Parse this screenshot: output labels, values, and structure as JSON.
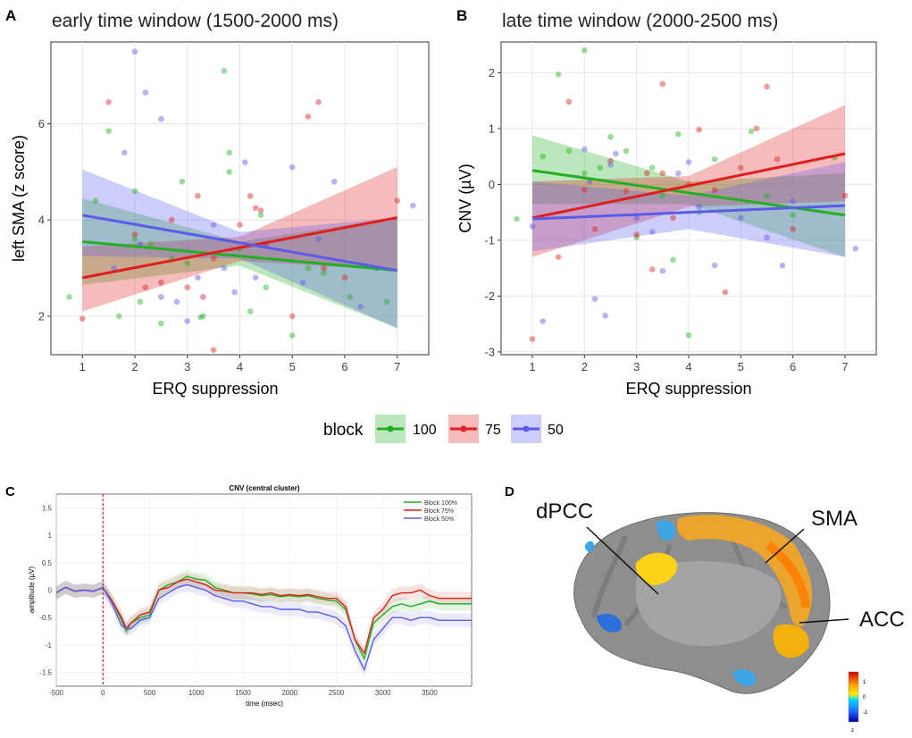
{
  "colors": {
    "s100": "#22b022",
    "s75": "#e01e1e",
    "s50": "#5b5bea",
    "panel_bg": "#ffffff",
    "grid": "#e6e6e6",
    "brain_gray": "#8c8c8c"
  },
  "panel_a": {
    "letter": "A",
    "title": "early time window (1500-2000 ms)",
    "chart_data": {
      "type": "scatter",
      "title": "early time window (1500-2000 ms)",
      "xlabel": "ERQ suppression",
      "ylabel": "left SMA (z score)",
      "xlim": [
        0.4,
        7.6
      ],
      "ylim": [
        1.2,
        7.7
      ],
      "xticks": [
        1,
        2,
        3,
        4,
        5,
        6,
        7
      ],
      "yticks": [
        2,
        4,
        6
      ],
      "series": [
        {
          "name": "100",
          "fit_x": [
            1,
            7
          ],
          "fit_y": [
            3.55,
            2.95
          ],
          "ci_low_x": [
            1,
            4,
            7
          ],
          "ci_low": [
            2.65,
            3.05,
            1.75
          ],
          "ci_high": [
            4.45,
            3.55,
            4.05
          ],
          "points": [
            [
              0.75,
              2.4
            ],
            [
              1.25,
              4.4
            ],
            [
              1.5,
              5.85
            ],
            [
              1.7,
              2.0
            ],
            [
              2.0,
              4.6
            ],
            [
              2.0,
              3.6
            ],
            [
              2.1,
              2.3
            ],
            [
              2.3,
              3.5
            ],
            [
              2.5,
              1.85
            ],
            [
              2.7,
              3.2
            ],
            [
              2.9,
              4.8
            ],
            [
              3.0,
              3.1
            ],
            [
              3.25,
              1.98
            ],
            [
              3.3,
              2.0
            ],
            [
              3.7,
              7.1
            ],
            [
              3.8,
              5.4
            ],
            [
              3.8,
              5.0
            ],
            [
              4.0,
              3.4
            ],
            [
              4.2,
              2.1
            ],
            [
              4.4,
              4.1
            ],
            [
              4.5,
              2.6
            ],
            [
              5.0,
              1.6
            ],
            [
              5.3,
              3.0
            ],
            [
              5.6,
              2.9
            ],
            [
              6.1,
              2.4
            ],
            [
              6.8,
              2.3
            ]
          ]
        },
        {
          "name": "75",
          "fit_x": [
            1,
            7
          ],
          "fit_y": [
            2.8,
            4.05
          ],
          "ci_low_x": [
            1,
            4,
            7
          ],
          "ci_low": [
            2.1,
            3.15,
            2.95
          ],
          "ci_high": [
            3.45,
            3.65,
            5.1
          ],
          "points": [
            [
              1.0,
              1.95
            ],
            [
              1.5,
              6.45
            ],
            [
              2.0,
              3.7
            ],
            [
              2.2,
              2.6
            ],
            [
              2.5,
              2.7
            ],
            [
              2.7,
              4.0
            ],
            [
              3.0,
              2.6
            ],
            [
              3.2,
              4.5
            ],
            [
              3.3,
              2.4
            ],
            [
              3.5,
              1.3
            ],
            [
              3.5,
              3.2
            ],
            [
              4.0,
              3.9
            ],
            [
              4.2,
              4.5
            ],
            [
              4.3,
              4.25
            ],
            [
              4.4,
              4.2
            ],
            [
              4.5,
              3.5
            ],
            [
              5.0,
              2.0
            ],
            [
              5.3,
              6.15
            ],
            [
              5.5,
              6.45
            ],
            [
              5.6,
              3.0
            ],
            [
              6.0,
              2.8
            ],
            [
              7.0,
              4.4
            ]
          ]
        },
        {
          "name": "50",
          "fit_x": [
            1,
            7
          ],
          "fit_y": [
            4.1,
            2.95
          ],
          "ci_low_x": [
            1,
            4,
            7
          ],
          "ci_low": [
            3.25,
            3.2,
            1.75
          ],
          "ci_high": [
            5.05,
            3.75,
            4.05
          ],
          "points": [
            [
              1.6,
              3.0
            ],
            [
              1.8,
              5.4
            ],
            [
              2.0,
              7.5
            ],
            [
              2.1,
              3.5
            ],
            [
              2.2,
              6.65
            ],
            [
              2.5,
              6.1
            ],
            [
              2.5,
              2.4
            ],
            [
              2.8,
              2.3
            ],
            [
              3.0,
              1.9
            ],
            [
              3.2,
              2.8
            ],
            [
              3.5,
              3.9
            ],
            [
              3.7,
              3.0
            ],
            [
              3.9,
              2.5
            ],
            [
              4.1,
              5.2
            ],
            [
              4.3,
              2.8
            ],
            [
              4.5,
              3.5
            ],
            [
              5.0,
              5.1
            ],
            [
              5.2,
              2.7
            ],
            [
              5.5,
              3.6
            ],
            [
              5.8,
              4.8
            ],
            [
              6.3,
              2.2
            ],
            [
              6.6,
              3.0
            ],
            [
              7.3,
              4.3
            ]
          ]
        }
      ]
    }
  },
  "panel_b": {
    "letter": "B",
    "title": "late time window (2000-2500 ms)",
    "chart_data": {
      "type": "scatter",
      "title": "late time window (2000-2500 ms)",
      "xlabel": "ERQ suppression",
      "ylabel": "CNV (µV)",
      "xlim": [
        0.4,
        7.6
      ],
      "ylim": [
        -3.05,
        2.55
      ],
      "xticks": [
        1,
        2,
        3,
        4,
        5,
        6,
        7
      ],
      "yticks": [
        -3,
        -2,
        -1,
        0,
        1,
        2
      ],
      "series": [
        {
          "name": "100",
          "fit_x": [
            1,
            7
          ],
          "fit_y": [
            0.25,
            -0.55
          ],
          "ci_low_x": [
            1,
            4,
            7
          ],
          "ci_low": [
            -0.35,
            -0.35,
            -1.3
          ],
          "ci_high": [
            0.88,
            0.05,
            0.2
          ],
          "points": [
            [
              0.7,
              -0.62
            ],
            [
              1.2,
              0.5
            ],
            [
              1.5,
              1.97
            ],
            [
              1.7,
              0.6
            ],
            [
              2.0,
              2.4
            ],
            [
              2.0,
              0.2
            ],
            [
              2.3,
              0.3
            ],
            [
              2.5,
              0.85
            ],
            [
              2.8,
              0.6
            ],
            [
              3.0,
              -0.95
            ],
            [
              3.3,
              0.3
            ],
            [
              3.5,
              -0.2
            ],
            [
              3.7,
              -1.35
            ],
            [
              3.8,
              0.9
            ],
            [
              4.0,
              -2.7
            ],
            [
              4.2,
              -0.5
            ],
            [
              4.5,
              0.45
            ],
            [
              5.2,
              0.95
            ],
            [
              5.5,
              -0.2
            ],
            [
              6.0,
              -0.55
            ],
            [
              6.8,
              0.48
            ]
          ]
        },
        {
          "name": "75",
          "fit_x": [
            1,
            7
          ],
          "fit_y": [
            -0.6,
            0.55
          ],
          "ci_low_x": [
            1,
            4,
            7
          ],
          "ci_low": [
            -1.3,
            -0.4,
            -0.3
          ],
          "ci_high": [
            0.05,
            0.15,
            1.42
          ],
          "points": [
            [
              1.0,
              -2.77
            ],
            [
              1.5,
              -1.3
            ],
            [
              1.7,
              1.48
            ],
            [
              2.0,
              -0.1
            ],
            [
              2.2,
              -0.8
            ],
            [
              2.5,
              0.42
            ],
            [
              2.8,
              -0.12
            ],
            [
              3.0,
              -0.9
            ],
            [
              3.2,
              0.2
            ],
            [
              3.3,
              -1.52
            ],
            [
              3.5,
              1.8
            ],
            [
              3.5,
              0.2
            ],
            [
              3.7,
              -0.6
            ],
            [
              4.0,
              0.0
            ],
            [
              4.2,
              0.98
            ],
            [
              4.5,
              -0.1
            ],
            [
              4.7,
              -1.93
            ],
            [
              5.0,
              0.3
            ],
            [
              5.3,
              1.0
            ],
            [
              5.5,
              1.75
            ],
            [
              5.7,
              0.45
            ],
            [
              6.0,
              -0.8
            ],
            [
              7.0,
              -0.2
            ]
          ]
        },
        {
          "name": "50",
          "fit_x": [
            1,
            7
          ],
          "fit_y": [
            -0.62,
            -0.38
          ],
          "ci_low_x": [
            1,
            4,
            7
          ],
          "ci_low": [
            -1.2,
            -0.8,
            -1.3
          ],
          "ci_high": [
            0.05,
            -0.2,
            0.4
          ],
          "points": [
            [
              1.0,
              -0.75
            ],
            [
              1.2,
              -2.45
            ],
            [
              2.0,
              0.63
            ],
            [
              2.1,
              0.05
            ],
            [
              2.2,
              -2.05
            ],
            [
              2.4,
              -2.35
            ],
            [
              2.5,
              0.35
            ],
            [
              2.6,
              0.55
            ],
            [
              3.0,
              -0.6
            ],
            [
              3.3,
              -0.85
            ],
            [
              3.5,
              -1.55
            ],
            [
              3.8,
              0.2
            ],
            [
              4.0,
              0.4
            ],
            [
              4.2,
              -0.4
            ],
            [
              4.5,
              -1.45
            ],
            [
              5.0,
              -0.6
            ],
            [
              5.5,
              -0.95
            ],
            [
              5.8,
              -1.45
            ],
            [
              6.0,
              -0.3
            ],
            [
              7.2,
              -1.15
            ]
          ]
        }
      ]
    }
  },
  "legend": {
    "title": "block",
    "items": [
      "100",
      "75",
      "50"
    ]
  },
  "panel_c": {
    "letter": "C",
    "chart_data": {
      "type": "line",
      "title": "CNV (central cluster)",
      "xlabel": "time (msec)",
      "ylabel": "amplitude (µV)",
      "xlim": [
        -500,
        3950
      ],
      "ylim": [
        -1.75,
        1.75
      ],
      "xticks": [
        -500,
        0,
        500,
        1000,
        1500,
        2000,
        2500,
        3000,
        3500
      ],
      "yticks": [
        1.5,
        1,
        0.5,
        0,
        -0.5,
        -1,
        -1.5
      ],
      "marker_x": 0,
      "legend": [
        "Block 100%",
        "Block 75%",
        "Block 50%"
      ],
      "x": [
        -500,
        -400,
        -300,
        -200,
        -100,
        0,
        100,
        200,
        250,
        300,
        400,
        500,
        600,
        700,
        800,
        900,
        1000,
        1100,
        1200,
        1300,
        1400,
        1500,
        1600,
        1700,
        1800,
        1900,
        2000,
        2100,
        2200,
        2300,
        2400,
        2500,
        2600,
        2700,
        2800,
        2900,
        3000,
        3100,
        3200,
        3300,
        3400,
        3500,
        3600,
        3700,
        3800,
        3950
      ],
      "series": [
        {
          "name": "Block 100%",
          "values": [
            -0.05,
            0.05,
            -0.02,
            0.0,
            -0.02,
            0.05,
            -0.2,
            -0.55,
            -0.75,
            -0.6,
            -0.5,
            -0.45,
            0.0,
            0.1,
            0.15,
            0.25,
            0.2,
            0.18,
            0.05,
            0.0,
            -0.05,
            -0.05,
            -0.07,
            -0.1,
            -0.08,
            -0.12,
            -0.1,
            -0.12,
            -0.1,
            -0.15,
            -0.18,
            -0.2,
            -0.35,
            -0.9,
            -1.25,
            -0.6,
            -0.45,
            -0.3,
            -0.25,
            -0.3,
            -0.25,
            -0.2,
            -0.25,
            -0.25,
            -0.25,
            -0.25
          ]
        },
        {
          "name": "Block 75%",
          "values": [
            -0.05,
            0.05,
            -0.02,
            0.0,
            -0.02,
            0.05,
            -0.2,
            -0.5,
            -0.7,
            -0.6,
            -0.45,
            -0.4,
            0.0,
            0.05,
            0.15,
            0.2,
            0.15,
            0.1,
            0.0,
            -0.02,
            -0.05,
            -0.05,
            -0.05,
            -0.08,
            -0.05,
            -0.1,
            -0.08,
            -0.1,
            -0.08,
            -0.12,
            -0.15,
            -0.15,
            -0.3,
            -0.9,
            -1.15,
            -0.5,
            -0.35,
            -0.1,
            -0.05,
            -0.05,
            0.0,
            -0.1,
            -0.15,
            -0.15,
            -0.15,
            -0.15
          ]
        },
        {
          "name": "Block 50%",
          "values": [
            -0.05,
            0.05,
            -0.02,
            0.0,
            -0.02,
            0.05,
            -0.25,
            -0.65,
            -0.7,
            -0.7,
            -0.55,
            -0.5,
            -0.15,
            -0.05,
            0.05,
            0.1,
            0.05,
            0.0,
            -0.1,
            -0.15,
            -0.2,
            -0.2,
            -0.25,
            -0.3,
            -0.3,
            -0.35,
            -0.35,
            -0.35,
            -0.4,
            -0.4,
            -0.45,
            -0.5,
            -0.65,
            -1.1,
            -1.45,
            -0.9,
            -0.7,
            -0.5,
            -0.5,
            -0.55,
            -0.5,
            -0.5,
            -0.55,
            -0.55,
            -0.55,
            -0.55
          ]
        }
      ]
    }
  },
  "panel_d": {
    "letter": "D",
    "labels": [
      "dPCC",
      "SMA",
      "ACC"
    ],
    "colorbar": {
      "ticks": [
        "1",
        "0",
        "-1"
      ],
      "label": "z"
    }
  }
}
